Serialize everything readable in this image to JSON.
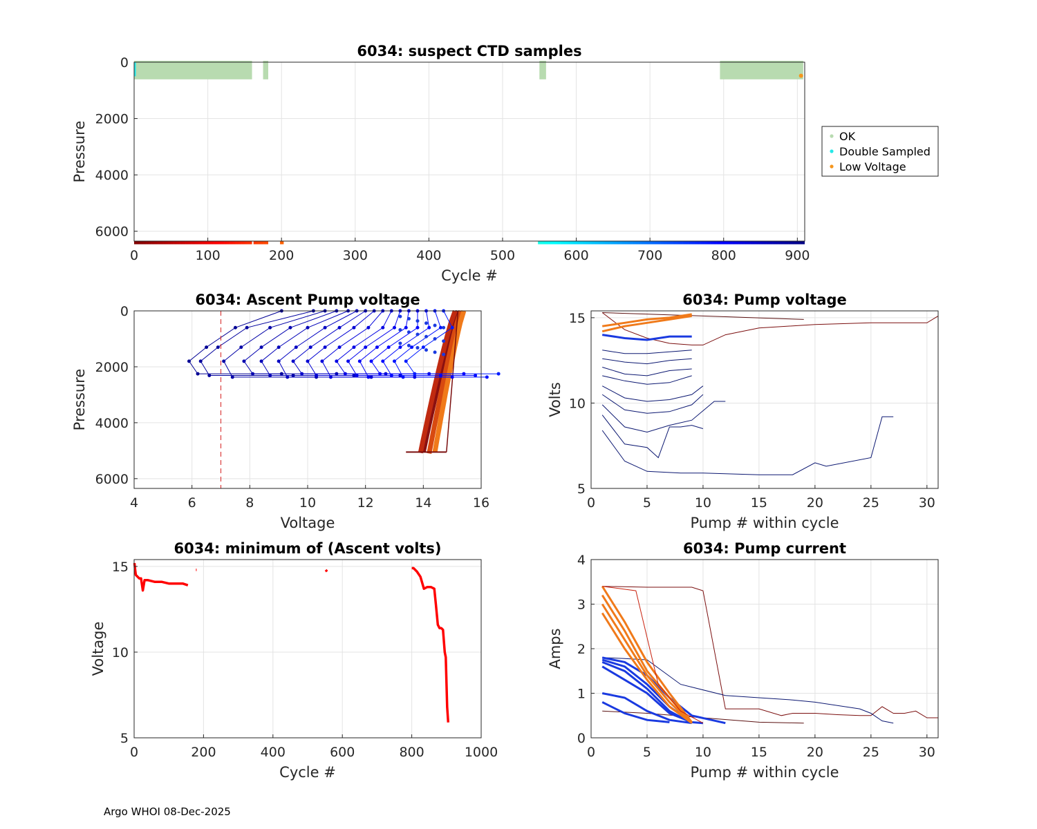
{
  "footer": "Argo WHOI 08-Dec-2025",
  "colors": {
    "ok": "#b8dbb0",
    "double_sampled": "#25e8e8",
    "low_voltage": "#f5961e",
    "ascent_profiles_old": "#0a1670",
    "ascent_profiles_new": "#7a0d0d",
    "min_voltage": "#ff0000",
    "threshold_line": "#d62020"
  },
  "chart_data": [
    {
      "id": "suspect",
      "type": "scatter",
      "title": "6034: suspect CTD samples",
      "xlabel": "Cycle #",
      "ylabel": "Pressure",
      "xlim": [
        0,
        910
      ],
      "ylim": [
        0,
        6350
      ],
      "y_reversed": true,
      "xticks": [
        0,
        100,
        200,
        300,
        400,
        500,
        600,
        700,
        800,
        900
      ],
      "yticks": [
        0,
        2000,
        4000,
        6000
      ],
      "legend": {
        "position": "outside-right",
        "entries": [
          "OK",
          "Double Sampled",
          "Low Voltage"
        ]
      },
      "ok_cycle_ranges": [
        [
          0,
          160
        ],
        [
          175,
          182
        ],
        [
          550,
          559
        ],
        [
          795,
          908
        ]
      ],
      "ok_pressure_range": [
        0,
        560
      ],
      "double_sampled": {
        "cycle": 1,
        "pressure_range": [
          0,
          500
        ]
      },
      "low_voltage": {
        "cycle": 905,
        "pressure": 480
      },
      "cycle_color_bar": {
        "pressure": 6400,
        "cycle_ranges": [
          [
            0,
            160
          ],
          [
            162,
            182
          ],
          [
            198,
            203
          ],
          [
            548,
            910
          ]
        ]
      }
    },
    {
      "id": "ascent_voltage",
      "type": "line",
      "title": "6034: Ascent Pump voltage",
      "xlabel": "Voltage",
      "ylabel": "Pressure",
      "xlim": [
        4,
        16
      ],
      "ylim": [
        0,
        6350
      ],
      "y_reversed": true,
      "xticks": [
        4,
        6,
        8,
        10,
        12,
        14,
        16
      ],
      "yticks": [
        0,
        2000,
        4000,
        6000
      ],
      "threshold_voltage": 7,
      "early_profiles": [
        {
          "surface_v": 15.2,
          "deep_v": 14.0,
          "deep_p": 5050
        },
        {
          "surface_v": 15.3,
          "deep_v": 14.2,
          "deep_p": 5100
        },
        {
          "surface_v": 15.4,
          "deep_v": 14.4,
          "deep_p": 5050
        },
        {
          "surface_v": 15.1,
          "deep_v": 13.9,
          "deep_p": 5080
        }
      ],
      "degraded_profiles": [
        {
          "min_v": 5.9,
          "v_surface": 9.1
        },
        {
          "min_v": 6.3,
          "v_surface": 10.2
        },
        {
          "min_v": 7.1,
          "v_surface": 10.6
        },
        {
          "min_v": 7.8,
          "v_surface": 11.0
        },
        {
          "min_v": 8.4,
          "v_surface": 11.4
        },
        {
          "min_v": 9.0,
          "v_surface": 11.7
        },
        {
          "min_v": 9.5,
          "v_surface": 12.0
        },
        {
          "min_v": 10.0,
          "v_surface": 12.3
        },
        {
          "min_v": 10.5,
          "v_surface": 12.6
        },
        {
          "min_v": 11.0,
          "v_surface": 12.9
        },
        {
          "min_v": 11.4,
          "v_surface": 13.2
        },
        {
          "min_v": 11.8,
          "v_surface": 13.5
        },
        {
          "min_v": 12.2,
          "v_surface": 13.8
        },
        {
          "min_v": 12.6,
          "v_surface": 14.1
        },
        {
          "min_v": 13.0,
          "v_surface": 14.4
        },
        {
          "min_v": 13.4,
          "v_surface": 14.7
        }
      ]
    },
    {
      "id": "pump_voltage",
      "type": "line",
      "title": "6034: Pump voltage",
      "xlabel": "Pump # within cycle",
      "ylabel": "Volts",
      "xlim": [
        0,
        31
      ],
      "ylim": [
        5,
        15.4
      ],
      "xticks": [
        0,
        5,
        10,
        15,
        20,
        25,
        30
      ],
      "yticks": [
        5,
        10,
        15
      ],
      "series": [
        {
          "name": "long-cycle",
          "x": [
            1,
            3,
            5,
            7,
            9,
            10,
            12,
            15,
            20,
            25,
            30,
            31
          ],
          "y": [
            15.3,
            14.3,
            13.8,
            13.5,
            13.4,
            13.4,
            14.0,
            14.4,
            14.6,
            14.7,
            14.7,
            15.1
          ]
        },
        {
          "name": "flat-high",
          "x": [
            1,
            10,
            19
          ],
          "y": [
            15.3,
            15.1,
            14.9
          ]
        },
        {
          "name": "low-27",
          "x": [
            1,
            3,
            5,
            8,
            10,
            15,
            18,
            20,
            21,
            25,
            26,
            27
          ],
          "y": [
            8.4,
            6.6,
            6.0,
            5.9,
            5.9,
            5.8,
            5.8,
            6.5,
            6.3,
            6.8,
            9.2,
            9.2
          ]
        },
        {
          "name": "low-10",
          "x": [
            1,
            3,
            5,
            6,
            7,
            8,
            9,
            10
          ],
          "y": [
            9.3,
            7.6,
            7.4,
            6.8,
            8.6,
            8.6,
            8.7,
            8.5
          ]
        },
        {
          "name": "low-12",
          "x": [
            1,
            3,
            5,
            7,
            9,
            11,
            12
          ],
          "y": [
            9.9,
            8.6,
            8.3,
            8.7,
            9.0,
            10.1,
            10.1
          ]
        },
        {
          "name": "mid-1",
          "x": [
            1,
            3,
            5,
            7,
            9,
            10
          ],
          "y": [
            10.5,
            9.6,
            9.4,
            9.5,
            9.9,
            10.5
          ]
        },
        {
          "name": "mid-2",
          "x": [
            1,
            3,
            5,
            7,
            9,
            10
          ],
          "y": [
            11.0,
            10.3,
            10.1,
            10.2,
            10.5,
            11.0
          ]
        },
        {
          "name": "mid-3",
          "x": [
            1,
            3,
            5,
            7,
            9
          ],
          "y": [
            11.6,
            11.3,
            11.1,
            11.2,
            11.6
          ]
        },
        {
          "name": "mid-4",
          "x": [
            1,
            3,
            5,
            7,
            9
          ],
          "y": [
            12.1,
            11.7,
            11.6,
            11.9,
            12.0
          ]
        },
        {
          "name": "mid-5",
          "x": [
            1,
            3,
            5,
            7,
            9
          ],
          "y": [
            12.6,
            12.4,
            12.3,
            12.5,
            12.6
          ]
        },
        {
          "name": "mid-6",
          "x": [
            1,
            3,
            5,
            7,
            9
          ],
          "y": [
            13.1,
            12.9,
            12.9,
            13.0,
            13.1
          ]
        },
        {
          "name": "blue-1",
          "x": [
            1,
            3,
            5,
            7,
            9
          ],
          "y": [
            14.0,
            13.8,
            13.7,
            13.9,
            13.9
          ]
        },
        {
          "name": "orange-1",
          "x": [
            1,
            3,
            5,
            7,
            9
          ],
          "y": [
            14.2,
            14.5,
            14.7,
            14.9,
            15.1
          ]
        },
        {
          "name": "orange-2",
          "x": [
            1,
            3,
            5,
            7,
            9
          ],
          "y": [
            14.5,
            14.7,
            14.9,
            15.0,
            15.2
          ]
        }
      ]
    },
    {
      "id": "min_voltage",
      "type": "scatter",
      "title": "6034: minimum of (Ascent volts)",
      "xlabel": "Cycle #",
      "ylabel": "Voltage",
      "xlim": [
        0,
        1000
      ],
      "ylim": [
        5,
        15.4
      ],
      "xticks": [
        0,
        200,
        400,
        600,
        800,
        1000
      ],
      "yticks": [
        5,
        10,
        15
      ],
      "segments": [
        {
          "x": [
            1,
            3,
            5,
            10,
            15,
            20,
            25,
            30,
            40,
            60,
            80,
            100,
            120,
            140,
            155
          ],
          "y": [
            15.2,
            14.8,
            14.5,
            14.4,
            14.3,
            14.3,
            13.6,
            14.2,
            14.2,
            14.1,
            14.1,
            14.0,
            14.0,
            14.0,
            13.9
          ]
        },
        {
          "x": [
            178,
            180
          ],
          "y": [
            14.8,
            14.8
          ]
        },
        {
          "x": [
            552,
            556
          ],
          "y": [
            14.8,
            14.7
          ]
        },
        {
          "x": [
            800,
            805,
            815,
            825,
            835,
            845,
            855,
            865,
            870,
            875,
            880,
            885,
            890,
            895,
            898,
            902,
            905
          ],
          "y": [
            14.9,
            14.9,
            14.7,
            14.4,
            13.7,
            13.8,
            13.8,
            13.7,
            12.7,
            11.6,
            11.4,
            11.4,
            11.3,
            10.0,
            9.7,
            6.8,
            5.9
          ]
        }
      ]
    },
    {
      "id": "pump_current",
      "type": "line",
      "title": "6034: Pump current",
      "xlabel": "Pump # within cycle",
      "ylabel": "Amps",
      "xlim": [
        0,
        31
      ],
      "ylim": [
        0,
        4
      ],
      "xticks": [
        0,
        5,
        10,
        15,
        20,
        25,
        30
      ],
      "yticks": [
        0,
        1,
        2,
        3,
        4
      ],
      "series": [
        {
          "name": "long-cycle",
          "x": [
            1,
            5,
            9,
            10,
            12,
            15,
            17,
            18,
            20,
            22,
            24,
            25,
            26,
            27,
            28,
            29,
            30,
            31
          ],
          "y": [
            3.4,
            3.38,
            3.38,
            3.3,
            0.65,
            0.65,
            0.5,
            0.55,
            0.55,
            0.52,
            0.5,
            0.5,
            0.7,
            0.55,
            0.55,
            0.6,
            0.45,
            0.45
          ]
        },
        {
          "name": "low-27",
          "x": [
            1,
            3,
            5,
            8,
            12,
            15,
            18,
            20,
            24,
            25,
            26,
            27
          ],
          "y": [
            1.8,
            1.78,
            1.75,
            1.2,
            0.95,
            0.9,
            0.85,
            0.8,
            0.65,
            0.55,
            0.38,
            0.33
          ]
        },
        {
          "name": "flat-19",
          "x": [
            1,
            5,
            10,
            15,
            19
          ],
          "y": [
            0.6,
            0.55,
            0.45,
            0.35,
            0.33
          ]
        },
        {
          "name": "blue-1",
          "x": [
            1,
            3,
            5,
            7,
            9
          ],
          "y": [
            1.7,
            1.5,
            1.1,
            0.6,
            0.33
          ]
        },
        {
          "name": "blue-2",
          "x": [
            1,
            3,
            5,
            7,
            9
          ],
          "y": [
            1.75,
            1.6,
            1.2,
            0.7,
            0.35
          ]
        },
        {
          "name": "blue-3",
          "x": [
            1,
            3,
            5,
            7,
            9,
            10
          ],
          "y": [
            1.6,
            1.3,
            1.0,
            0.55,
            0.35,
            0.33
          ]
        },
        {
          "name": "blue-4",
          "x": [
            1,
            3,
            5,
            7,
            9,
            12
          ],
          "y": [
            1.8,
            1.7,
            1.4,
            0.9,
            0.5,
            0.33
          ]
        },
        {
          "name": "blue-5",
          "x": [
            1,
            3,
            5,
            7,
            9
          ],
          "y": [
            1.0,
            0.9,
            0.6,
            0.4,
            0.33
          ]
        },
        {
          "name": "blue-6",
          "x": [
            1,
            3,
            5,
            7
          ],
          "y": [
            0.8,
            0.55,
            0.4,
            0.35
          ]
        },
        {
          "name": "orange-1",
          "x": [
            1,
            3,
            5,
            7,
            9
          ],
          "y": [
            3.4,
            2.6,
            1.7,
            1.0,
            0.35
          ]
        },
        {
          "name": "orange-2",
          "x": [
            1,
            3,
            5,
            7,
            9
          ],
          "y": [
            3.2,
            2.4,
            1.5,
            0.9,
            0.33
          ]
        },
        {
          "name": "orange-3",
          "x": [
            1,
            3,
            5,
            7,
            9
          ],
          "y": [
            3.0,
            2.2,
            1.4,
            0.8,
            0.33
          ]
        },
        {
          "name": "orange-4",
          "x": [
            1,
            3,
            5,
            7,
            9
          ],
          "y": [
            2.8,
            2.0,
            1.3,
            0.7,
            0.33
          ]
        },
        {
          "name": "red-1",
          "x": [
            1,
            4,
            6,
            8,
            10
          ],
          "y": [
            3.4,
            3.3,
            1.2,
            0.6,
            0.33
          ]
        }
      ]
    }
  ]
}
